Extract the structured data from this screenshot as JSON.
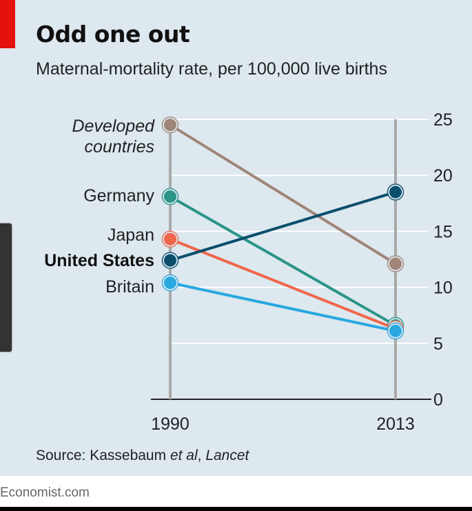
{
  "title": "Odd one out",
  "subtitle": "Maternal-mortality rate, per 100,000 live births",
  "source": {
    "prefix": "Source: Kassebaum ",
    "etal": "et al",
    "sep": ", ",
    "journal": "Lancet"
  },
  "footer": "Economist.com",
  "colors": {
    "background": "#dde8ef",
    "accent": "#e3120b",
    "axis": "#a9a9a9",
    "gridline": "#ffffff"
  },
  "chart_data": {
    "type": "line",
    "title": "Odd one out",
    "subtitle": "Maternal-mortality rate, per 100,000 live births",
    "categories": [
      "1990",
      "2013"
    ],
    "ylim": [
      0,
      25
    ],
    "yticks": [
      0,
      5,
      10,
      15,
      20,
      25
    ],
    "y_axis_position": "right",
    "grid": true,
    "legend": "direct labels at left of 1990 points",
    "series": [
      {
        "name": "Developed countries",
        "name_lines": [
          "Developed",
          "countries"
        ],
        "style": "italic",
        "color": "#a08578",
        "values": [
          24.5,
          12.1
        ]
      },
      {
        "name": "Germany",
        "name_lines": [
          "Germany"
        ],
        "style": "normal",
        "color": "#2a9488",
        "values": [
          18.1,
          6.6
        ]
      },
      {
        "name": "Japan",
        "name_lines": [
          "Japan"
        ],
        "style": "normal",
        "color": "#f0664a",
        "values": [
          14.3,
          6.3
        ]
      },
      {
        "name": "United States",
        "name_lines": [
          "United States"
        ],
        "style": "bold",
        "color": "#0b4f6c",
        "values": [
          12.4,
          18.5
        ]
      },
      {
        "name": "Britain",
        "name_lines": [
          "Britain"
        ],
        "style": "normal",
        "color": "#29a8e0",
        "values": [
          10.4,
          6.1
        ]
      }
    ]
  }
}
